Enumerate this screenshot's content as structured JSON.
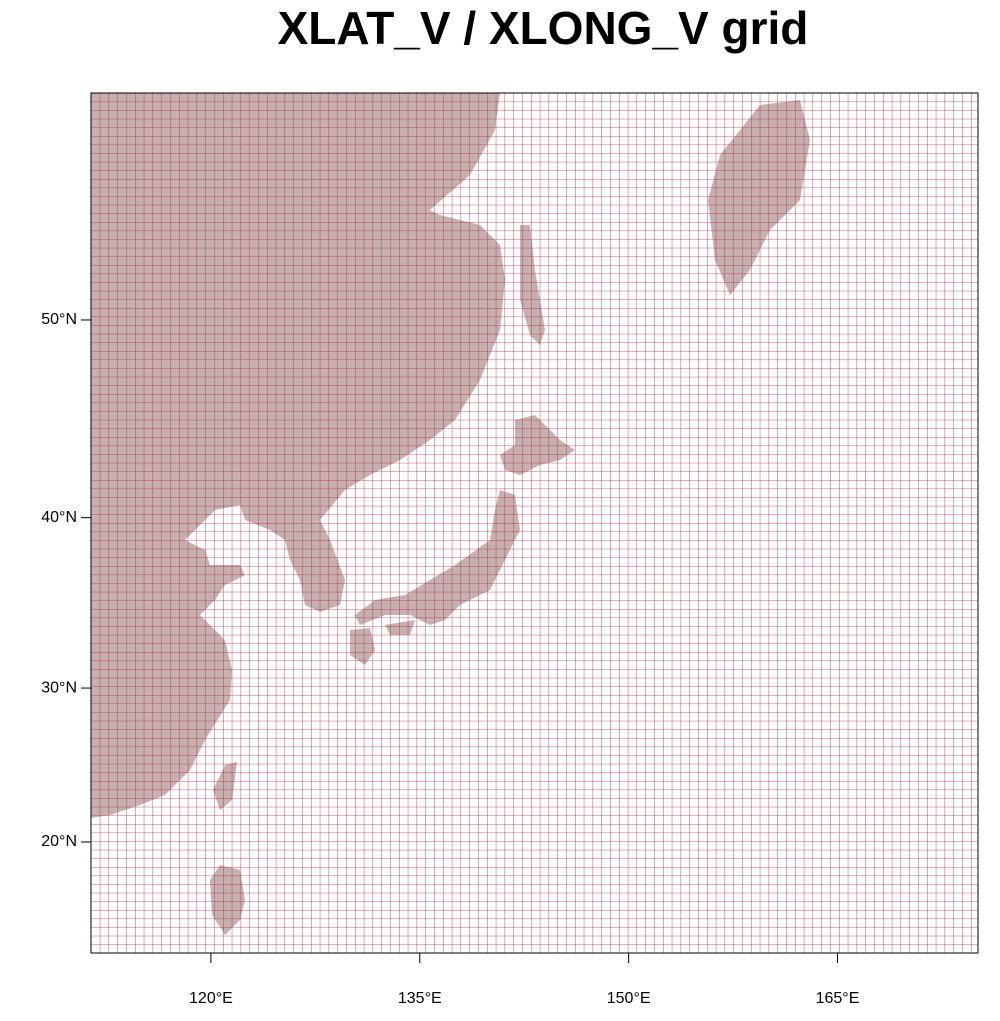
{
  "map": {
    "title": "XLAT_V / XLONG_V grid",
    "lat_ticks": [
      {
        "value": 50,
        "label": "50°N"
      },
      {
        "value": 40,
        "label": "40°N"
      },
      {
        "value": 30,
        "label": "30°N"
      },
      {
        "value": 20,
        "label": "20°N"
      }
    ],
    "lon_ticks": [
      {
        "value": 120,
        "label": "120°E"
      },
      {
        "value": 135,
        "label": "135°E"
      },
      {
        "value": 150,
        "label": "150°E"
      },
      {
        "value": 165,
        "label": "165°E"
      }
    ],
    "grid_color": "#b0283c",
    "land_color": "#c6b0b0"
  }
}
